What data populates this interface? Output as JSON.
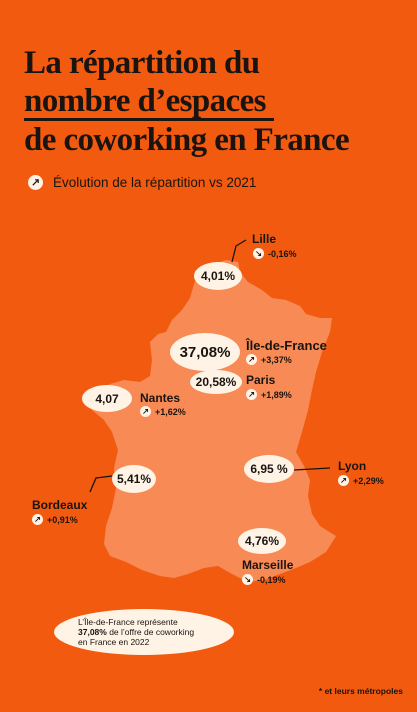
{
  "title": {
    "line1": "La répartition du",
    "line2": "nombre d’espaces",
    "line3": "de coworking en France"
  },
  "legend": {
    "icon": "arrow-icon",
    "label": "Évolution de la répartition vs 2021"
  },
  "regions": [
    {
      "city": "Lille",
      "share": "4,01%",
      "change": "-0,16%",
      "direction": "down"
    },
    {
      "city": "Île-de-France",
      "share": "37,08%",
      "change": "+3,37%",
      "direction": "up"
    },
    {
      "city": "Paris",
      "share": "20,58%",
      "change": "+1,89%",
      "direction": "up"
    },
    {
      "city": "Nantes",
      "share": "4,07",
      "change": "+1,62%",
      "direction": "up"
    },
    {
      "city": "Lyon",
      "share": "6,95 %",
      "change": "+2,29%",
      "direction": "up"
    },
    {
      "city": "Bordeaux",
      "share": "5,41%",
      "change": "+0,91%",
      "direction": "up"
    },
    {
      "city": "Marseille",
      "share": "4,76%",
      "change": "-0,19%",
      "direction": "down"
    }
  ],
  "note": {
    "line1": "L’Île-de-France représente",
    "highlight": "37,08%",
    "line2": " de l’offre de coworking",
    "line3": "en France en 2022"
  },
  "footnote": "* et leurs métropoles",
  "colors": {
    "background": "#f25a0f",
    "map": "#f88b55",
    "bubble": "#fff3e6",
    "text": "#1a1411"
  }
}
